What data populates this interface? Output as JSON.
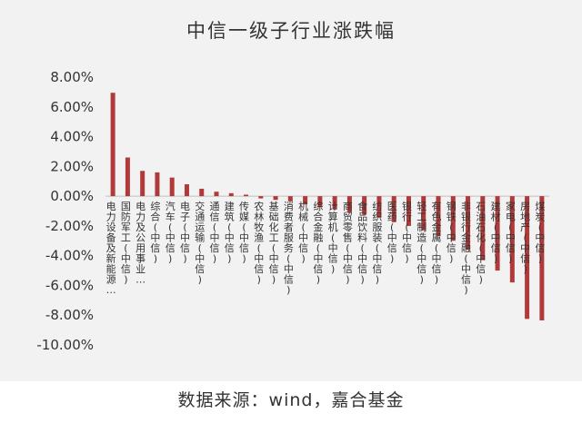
{
  "title": "中信一级子行业涨跌幅",
  "source": "数据来源：wind，嘉合基金",
  "colors": {
    "bar": "#b03a3a",
    "axis": "#bfbfbf",
    "background": "#f2f2f2"
  },
  "chart_data": {
    "type": "bar",
    "title": "中信一级子行业涨跌幅",
    "ylim": [
      -10,
      8
    ],
    "yticks": [
      "8.00%",
      "6.00%",
      "4.00%",
      "2.00%",
      "0.00%",
      "-2.00%",
      "-4.00%",
      "-6.00%",
      "-8.00%",
      "-10.00%"
    ],
    "grid": false,
    "legend": "none",
    "categories": [
      "电力设备及新能源…",
      "国防军工(中信)",
      "电力及公用事业…",
      "综合(中信)",
      "汽车(中信)",
      "电子(中信)",
      "交通运输(中信)",
      "通信(中信)",
      "建筑(中信)",
      "传媒(中信)",
      "农林牧渔(中信)",
      "基础化工(中信)",
      "消费者服务(中信)",
      "机械(中信)",
      "综合金融(中信)",
      "计算机(中信)",
      "商贸零售(中信)",
      "食品饮料(中信)",
      "纺织服装(中信)",
      "医药(中信)",
      "银行(中信)",
      "轻工制造(中信)",
      "有色金属(中信)",
      "钢铁(中信)",
      "非银行金融(中信)",
      "石油石化(中信)",
      "建材(中信)",
      "家电(中信)",
      "房地产(中信)",
      "煤炭(中信)"
    ],
    "values": [
      6.95,
      2.6,
      1.7,
      1.6,
      1.25,
      0.8,
      0.5,
      0.3,
      0.2,
      0.1,
      -0.15,
      -0.25,
      -0.35,
      -0.55,
      -0.75,
      -0.9,
      -1.1,
      -1.25,
      -1.45,
      -1.75,
      -2.0,
      -2.3,
      -2.7,
      -3.0,
      -3.6,
      -4.3,
      -5.0,
      -5.8,
      -8.25,
      -8.35
    ]
  }
}
